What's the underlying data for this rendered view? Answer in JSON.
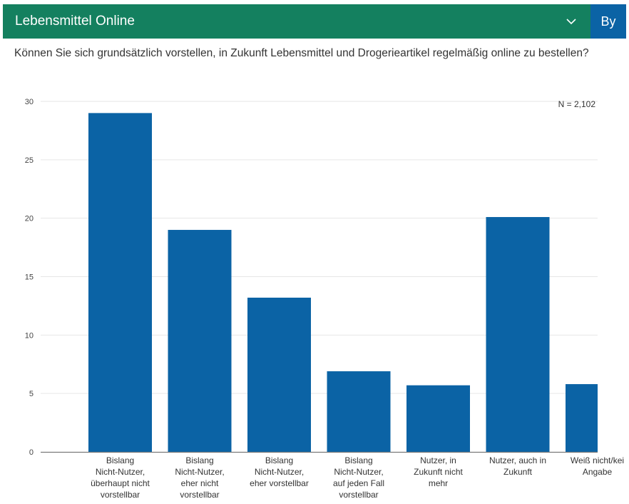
{
  "header": {
    "title": "Lebensmittel Online",
    "brand_label": "By"
  },
  "colors": {
    "header_bg": "#14805f",
    "brand_bg": "#0b63a5",
    "bar": "#0b63a5"
  },
  "icons": {
    "dropdown": "chevron-down-icon"
  },
  "chart_data": {
    "type": "bar",
    "title": "Können Sie sich grundsätzlich vorstellen, in Zukunft Lebensmittel und Drogerieartikel regelmäßig online zu bestellen?",
    "note": "N = 2,102",
    "categories": [
      [
        "Bislang",
        "Nicht-Nutzer,",
        "überhaupt  nicht",
        "vorstellbar"
      ],
      [
        "Bislang",
        "Nicht-Nutzer,",
        "eher  nicht",
        "vorstellbar"
      ],
      [
        "Bislang",
        "Nicht-Nutzer,",
        "eher  vorstellbar"
      ],
      [
        "Bislang",
        "Nicht-Nutzer,",
        "auf  jeden  Fall",
        "vorstellbar"
      ],
      [
        "Nutzer,  in",
        "Zukunft  nicht",
        "mehr"
      ],
      [
        "Nutzer, auch in",
        "Zukunft"
      ],
      [
        "Weiß nicht/kei",
        "Angabe"
      ]
    ],
    "values": [
      29,
      19,
      13.2,
      6.9,
      5.7,
      20.1,
      5.8
    ],
    "ylim": [
      0,
      30
    ],
    "yticks": [
      0,
      5,
      10,
      15,
      20,
      25,
      30
    ],
    "grid": true,
    "xlabel": "",
    "ylabel": ""
  }
}
